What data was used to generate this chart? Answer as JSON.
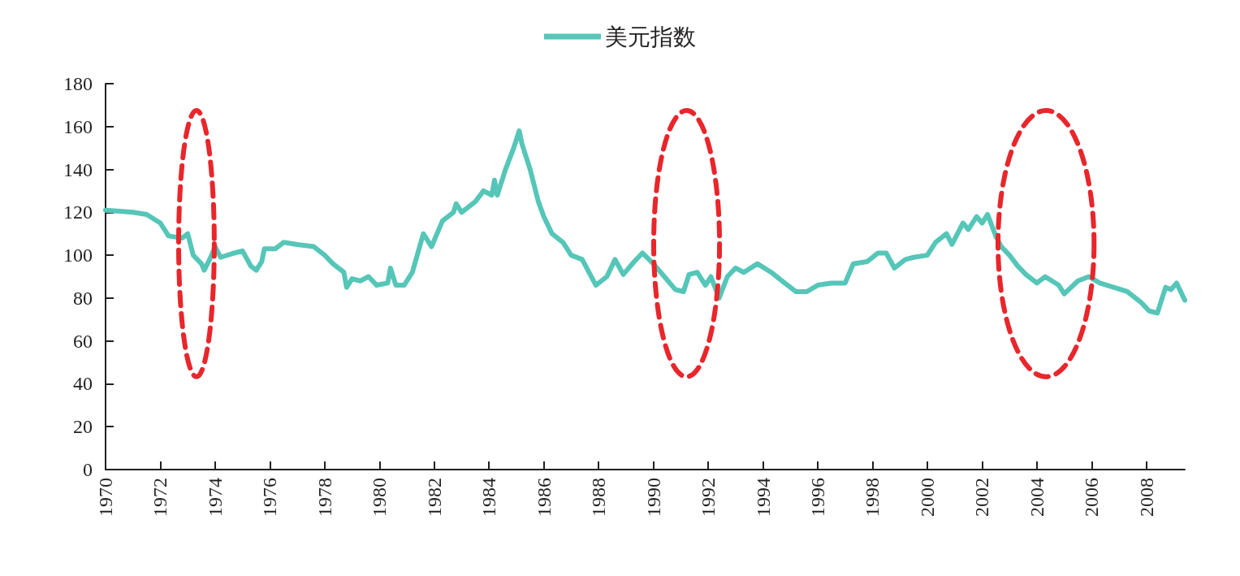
{
  "chart_data": {
    "type": "line",
    "xlim": [
      1970,
      2009.4
    ],
    "xticks": [
      1970,
      1972,
      1974,
      1976,
      1978,
      1980,
      1982,
      1984,
      1986,
      1988,
      1990,
      1992,
      1994,
      1996,
      1998,
      2000,
      2002,
      2004,
      2006,
      2008
    ],
    "ylim": [
      0,
      180
    ],
    "yticks": [
      0,
      20,
      40,
      60,
      80,
      100,
      120,
      140,
      160,
      180
    ],
    "grid": false,
    "legend": "top",
    "marker": "none",
    "line_style": "solid",
    "x": [
      1970,
      1971,
      1971.5,
      1972,
      1972.3,
      1972.8,
      1973,
      1973.2,
      1973.5,
      1973.6,
      1973.8,
      1974,
      1974.2,
      1974.7,
      1975,
      1975.3,
      1975.5,
      1975.7,
      1975.8,
      1976.2,
      1976.5,
      1977,
      1977.6,
      1978,
      1978.3,
      1978.7,
      1978.8,
      1979,
      1979.3,
      1979.6,
      1979.9,
      1980.3,
      1980.4,
      1980.6,
      1980.9,
      1981.2,
      1981.6,
      1981.9,
      1982.3,
      1982.7,
      1982.8,
      1983,
      1983.5,
      1983.8,
      1984.1,
      1984.2,
      1984.3,
      1984.6,
      1984.9,
      1985.1,
      1985.2,
      1985.5,
      1985.8,
      1986,
      1986.3,
      1986.7,
      1987,
      1987.4,
      1987.9,
      1988.3,
      1988.6,
      1988.9,
      1989.3,
      1989.6,
      1990,
      1990.4,
      1990.8,
      1991.1,
      1991.3,
      1991.6,
      1991.9,
      1992.1,
      1992.4,
      1992.7,
      1993,
      1993.3,
      1993.8,
      1994.3,
      1994.7,
      1995.2,
      1995.6,
      1996,
      1996.5,
      1997,
      1997.3,
      1997.8,
      1998.2,
      1998.5,
      1998.8,
      1999.2,
      1999.5,
      2000,
      2000.3,
      2000.7,
      2000.9,
      2001.3,
      2001.5,
      2001.8,
      2002,
      2002.2,
      2002.5,
      2002.7,
      2003,
      2003.3,
      2003.6,
      2004,
      2004.3,
      2004.8,
      2005,
      2005.5,
      2005.9,
      2006.3,
      2006.8,
      2007.3,
      2007.8,
      2008.1,
      2008.4,
      2008.7,
      2008.9,
      2009.1,
      2009.4
    ],
    "series": [
      {
        "name": "美元指数",
        "color": "#55c6b8",
        "values": [
          121,
          120,
          119,
          115,
          109,
          108,
          110,
          100,
          96,
          93,
          98,
          104,
          99,
          101,
          102,
          95,
          93,
          97,
          103,
          103,
          106,
          105,
          104,
          100,
          96,
          92,
          85,
          89,
          88,
          90,
          86,
          87,
          94,
          86,
          86,
          92,
          110,
          104,
          116,
          120,
          124,
          120,
          125,
          130,
          128,
          135,
          128,
          140,
          150,
          158,
          152,
          140,
          125,
          118,
          110,
          106,
          100,
          98,
          86,
          90,
          98,
          91,
          97,
          101,
          96,
          90,
          84,
          83,
          91,
          92,
          86,
          90,
          80,
          90,
          94,
          92,
          96,
          92,
          88,
          83,
          83,
          86,
          87,
          87,
          96,
          97,
          101,
          101,
          94,
          98,
          99,
          100,
          106,
          110,
          105,
          115,
          112,
          118,
          115,
          119,
          109,
          104,
          100,
          95,
          91,
          87,
          90,
          86,
          82,
          88,
          90,
          87,
          85,
          83,
          78,
          74,
          73,
          85,
          84,
          87,
          79
        ]
      }
    ]
  }
}
